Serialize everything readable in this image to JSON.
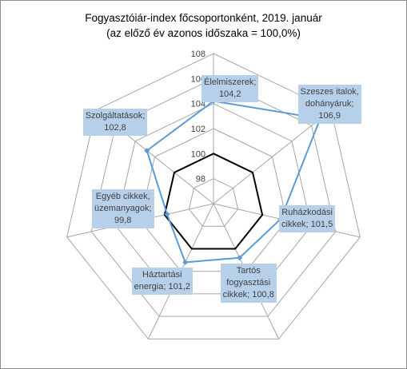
{
  "chart_data": {
    "type": "radar",
    "title_line1": "Fogyasztóiár-index főcsoportonként, 2019. január",
    "title_line2": "(az előző év azonos időszaka = 100,0%)",
    "axis_ticks": [
      "98",
      "100",
      "102",
      "104",
      "106",
      "108"
    ],
    "rlim": [
      96,
      108
    ],
    "reference_value": 100,
    "categories": [
      "Élelmiszerek",
      "Szeszes italok, dohányáruk",
      "Ruházkodási cikkek",
      "Tartós fogyasztási cikkek",
      "Háztartási energia",
      "Egyéb cikkek, üzemanyagok",
      "Szolgáltatások"
    ],
    "values": [
      104.2,
      106.9,
      101.5,
      100.8,
      101.2,
      99.8,
      102.8
    ],
    "labels": [
      [
        "Élelmiszerek;",
        "104,2"
      ],
      [
        "Szeszes italok,",
        "dohányáruk;",
        "106,9"
      ],
      [
        "Ruházkodási",
        "cikkek; 101,5"
      ],
      [
        "Tartós",
        "fogyasztási",
        "cikkek; 100,8"
      ],
      [
        "Háztartási",
        "energia; 101,2"
      ],
      [
        "Egyéb cikkek,",
        "üzemanyagok;",
        "99,8"
      ],
      [
        "Szolgáltatások;",
        "102,8"
      ]
    ],
    "colors": {
      "series": "#5b9bd5",
      "reference": "#000000",
      "grid": "#a6a6a6",
      "label_bg": "#b7d0ea"
    }
  }
}
